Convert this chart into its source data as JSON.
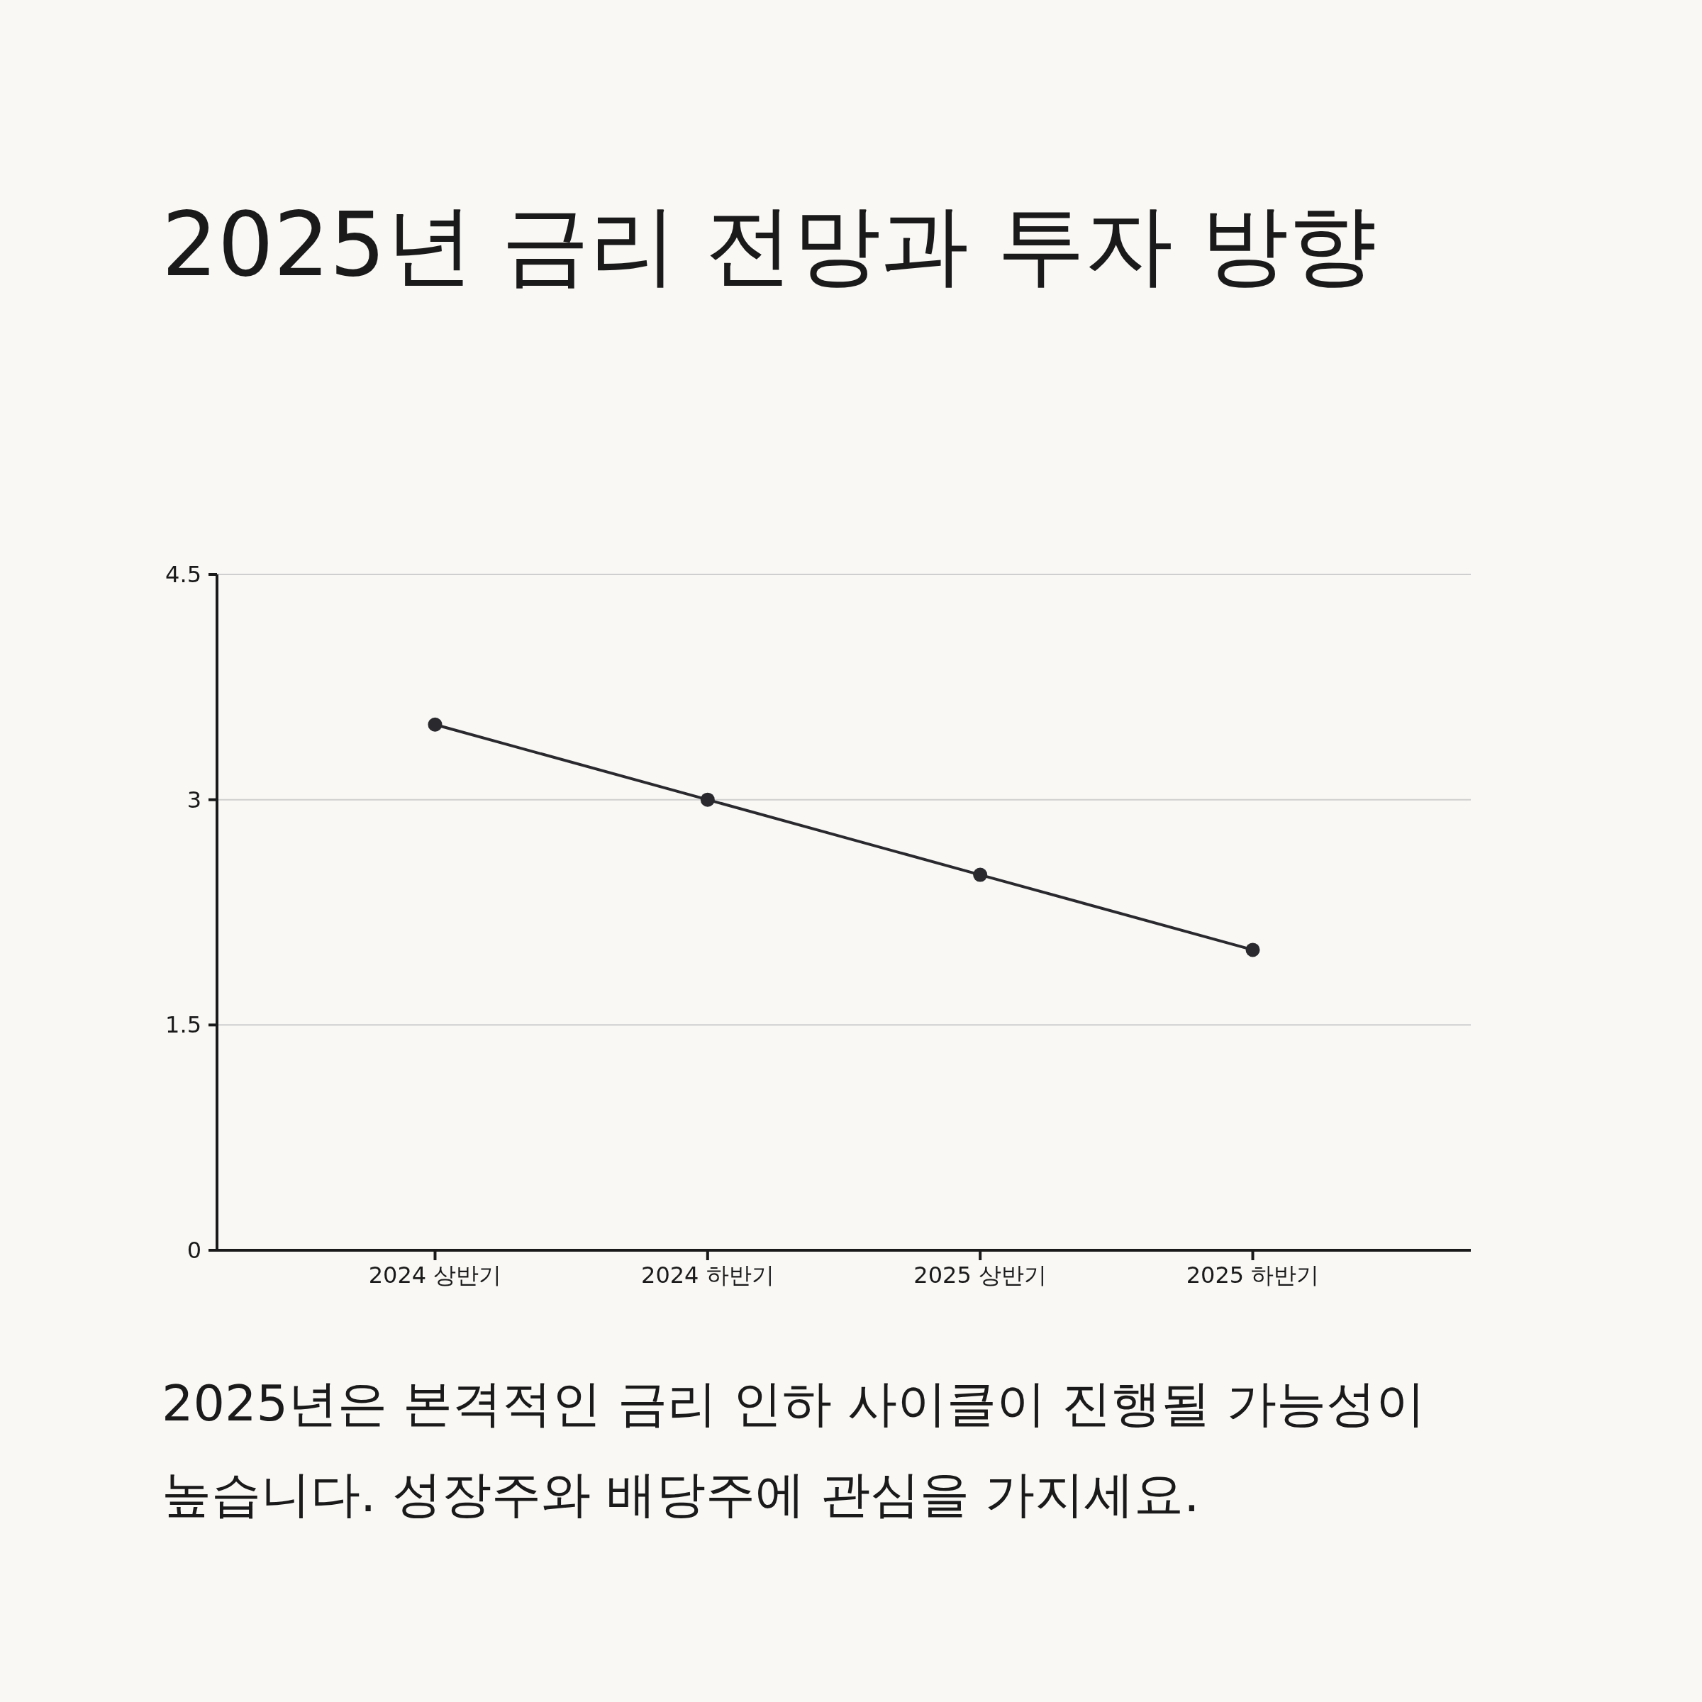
{
  "chart_data": {
    "type": "line",
    "title": "2025년 금리 전망과 투자 방향",
    "categories": [
      "2024 상반기",
      "2024 하반기",
      "2025 상반기",
      "2025 하반기"
    ],
    "series": [
      {
        "color": "#2a2a2e",
        "values": [
          3.5,
          3.0,
          2.5,
          2.0
        ]
      }
    ],
    "ylim": [
      0,
      4.5
    ],
    "yticks": [
      0,
      1.5,
      3,
      4.5
    ],
    "grid": "y",
    "marker": "circle",
    "line_style": "solid",
    "annotations": [
      "2025년은 본격적인 금리 인하 사이클이 진행될 가능성이 높습니다. 성장주와 배당주에 관심을 가지세요."
    ]
  }
}
